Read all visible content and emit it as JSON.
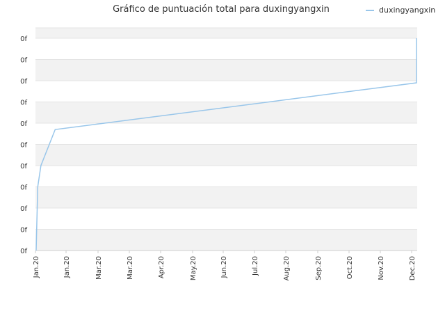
{
  "chart_data": {
    "type": "line",
    "title": "Gráfico de puntuación total para duxingyangxin",
    "xlabel": "",
    "ylabel": "",
    "legend_position": "top-right",
    "grid": true,
    "x_tick_labels": [
      "Jan.20",
      "Jan.20",
      "Mar.20",
      "Mar.20",
      "Apr.20",
      "May.20",
      "Jun.20",
      "Jul.20",
      "Aug.20",
      "Sep.20",
      "Oct.20",
      "Nov.20",
      "Dec.20"
    ],
    "y_tick_labels": [
      "0f",
      "0f",
      "0f",
      "0f",
      "0f",
      "0f",
      "0f",
      "0f",
      "0f",
      "0f",
      "0f"
    ],
    "ylim": [
      0,
      10
    ],
    "series": [
      {
        "name": "duxingyangxin",
        "color": "#99c6ea",
        "x": [
          0,
          0.05,
          0.15,
          0.6,
          12.0,
          12.0
        ],
        "y": [
          0,
          3,
          4,
          5.7,
          7.9,
          10
        ]
      }
    ]
  }
}
